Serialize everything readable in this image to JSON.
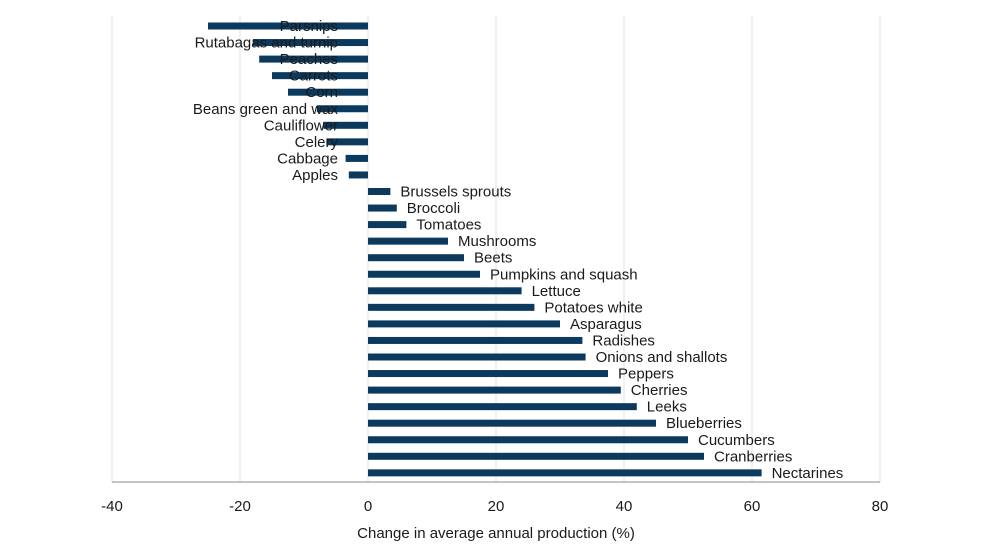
{
  "chart_data": {
    "type": "bar",
    "orientation": "horizontal",
    "xlabel": "Change in average annual production (%)",
    "ylabel": "",
    "xlim": [
      -40,
      80
    ],
    "xticks": [
      "-40",
      "-20",
      "0",
      "20",
      "40",
      "60",
      "80"
    ],
    "grid": "vertical",
    "bar_color": "#0b3a5e",
    "categories": [
      "Parsnips",
      "Rutabagas and turnip",
      "Peaches",
      "Carrots",
      "Corn",
      "Beans green and wax",
      "Cauliflower",
      "Celery",
      "Cabbage",
      "Apples",
      "Brussels sprouts",
      "Broccoli",
      "Tomatoes",
      "Mushrooms",
      "Beets",
      "Pumpkins and squash",
      "Lettuce",
      "Potatoes white",
      "Asparagus",
      "Radishes",
      "Onions and shallots",
      "Peppers",
      "Cherries",
      "Leeks",
      "Blueberries",
      "Cucumbers",
      "Cranberries",
      "Nectarines"
    ],
    "values": [
      -25,
      -18,
      -17,
      -15,
      -12.5,
      -8,
      -7,
      -6.5,
      -3.5,
      -3,
      3.5,
      4.5,
      6,
      12.5,
      15,
      17.5,
      24,
      26,
      30,
      33.5,
      34,
      37.5,
      39.5,
      42,
      45,
      50,
      52.5,
      61.5
    ]
  }
}
